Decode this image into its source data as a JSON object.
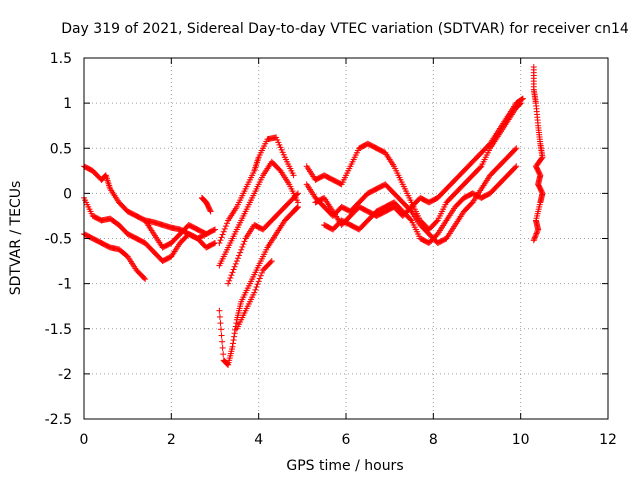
{
  "chart_data": {
    "type": "scatter",
    "title": "Day 319 of 2021, Sidereal Day-to-day VTEC variation (SDTVAR) for receiver cn14",
    "xlabel": "GPS time / hours",
    "ylabel": "SDTVAR / TECUs",
    "xlim": [
      0,
      12
    ],
    "ylim": [
      -2.5,
      1.5
    ],
    "xticks": [
      0,
      2,
      4,
      6,
      8,
      10,
      12
    ],
    "xtick_labels": [
      "0",
      "2",
      "4",
      "6",
      "8",
      "10",
      "12"
    ],
    "yticks": [
      -2.5,
      -2,
      -1.5,
      -1,
      -0.5,
      0,
      0.5,
      1,
      1.5
    ],
    "ytick_labels": [
      "-2.5",
      "-2",
      "-1.5",
      "-1",
      "-0.5",
      "0",
      "0.5",
      "1",
      "1.5"
    ],
    "grid": true,
    "marker": "+",
    "color": "#ff0000",
    "series": [
      {
        "name": "track-1",
        "points": [
          [
            0.0,
            0.3
          ],
          [
            0.2,
            0.25
          ],
          [
            0.4,
            0.15
          ],
          [
            0.5,
            0.2
          ],
          [
            0.6,
            0.05
          ],
          [
            0.8,
            -0.1
          ],
          [
            1.0,
            -0.2
          ],
          [
            1.2,
            -0.25
          ],
          [
            1.4,
            -0.3
          ],
          [
            1.6,
            -0.32
          ],
          [
            1.8,
            -0.35
          ],
          [
            2.0,
            -0.38
          ],
          [
            2.2,
            -0.4
          ],
          [
            2.4,
            -0.45
          ],
          [
            2.6,
            -0.5
          ],
          [
            2.8,
            -0.45
          ],
          [
            3.0,
            -0.4
          ]
        ]
      },
      {
        "name": "track-2",
        "points": [
          [
            0.0,
            -0.05
          ],
          [
            0.2,
            -0.25
          ],
          [
            0.4,
            -0.3
          ],
          [
            0.6,
            -0.28
          ],
          [
            0.8,
            -0.35
          ],
          [
            1.0,
            -0.45
          ],
          [
            1.2,
            -0.5
          ],
          [
            1.4,
            -0.55
          ],
          [
            1.6,
            -0.65
          ],
          [
            1.8,
            -0.75
          ],
          [
            2.0,
            -0.7
          ],
          [
            2.2,
            -0.55
          ],
          [
            2.4,
            -0.45
          ],
          [
            2.6,
            -0.5
          ],
          [
            2.8,
            -0.6
          ],
          [
            3.0,
            -0.55
          ]
        ]
      },
      {
        "name": "track-3",
        "points": [
          [
            0.0,
            -0.45
          ],
          [
            0.2,
            -0.5
          ],
          [
            0.4,
            -0.55
          ],
          [
            0.6,
            -0.6
          ],
          [
            0.8,
            -0.62
          ],
          [
            1.0,
            -0.7
          ],
          [
            1.2,
            -0.85
          ],
          [
            1.4,
            -0.95
          ]
        ]
      },
      {
        "name": "track-4",
        "points": [
          [
            1.4,
            -0.3
          ],
          [
            1.6,
            -0.45
          ],
          [
            1.8,
            -0.6
          ],
          [
            2.0,
            -0.55
          ],
          [
            2.2,
            -0.45
          ],
          [
            2.4,
            -0.35
          ],
          [
            2.6,
            -0.4
          ],
          [
            2.8,
            -0.45
          ]
        ]
      },
      {
        "name": "track-5",
        "points": [
          [
            2.7,
            -0.05
          ],
          [
            2.8,
            -0.1
          ],
          [
            2.9,
            -0.2
          ]
        ]
      },
      {
        "name": "track-6",
        "points": [
          [
            3.1,
            -1.3
          ],
          [
            3.2,
            -1.85
          ],
          [
            3.3,
            -1.9
          ],
          [
            3.4,
            -1.7
          ],
          [
            3.5,
            -1.4
          ],
          [
            3.6,
            -1.2
          ],
          [
            3.8,
            -1.0
          ],
          [
            4.0,
            -0.8
          ],
          [
            4.2,
            -0.6
          ],
          [
            4.4,
            -0.45
          ],
          [
            4.6,
            -0.3
          ],
          [
            4.8,
            -0.2
          ],
          [
            4.9,
            -0.15
          ]
        ]
      },
      {
        "name": "track-7",
        "points": [
          [
            3.1,
            -0.55
          ],
          [
            3.3,
            -0.3
          ],
          [
            3.5,
            -0.15
          ],
          [
            3.7,
            0.05
          ],
          [
            3.9,
            0.25
          ],
          [
            4.0,
            0.4
          ],
          [
            4.2,
            0.6
          ],
          [
            4.4,
            0.62
          ],
          [
            4.6,
            0.4
          ],
          [
            4.8,
            0.2
          ]
        ]
      },
      {
        "name": "track-8",
        "points": [
          [
            3.1,
            -0.8
          ],
          [
            3.3,
            -0.6
          ],
          [
            3.5,
            -0.4
          ],
          [
            3.7,
            -0.2
          ],
          [
            3.9,
            0.0
          ],
          [
            4.1,
            0.2
          ],
          [
            4.3,
            0.35
          ],
          [
            4.5,
            0.25
          ],
          [
            4.7,
            0.1
          ],
          [
            4.9,
            -0.1
          ]
        ]
      },
      {
        "name": "track-9",
        "points": [
          [
            3.3,
            -1.0
          ],
          [
            3.5,
            -0.75
          ],
          [
            3.7,
            -0.5
          ],
          [
            3.9,
            -0.35
          ],
          [
            4.1,
            -0.4
          ],
          [
            4.3,
            -0.3
          ],
          [
            4.5,
            -0.2
          ],
          [
            4.7,
            -0.1
          ],
          [
            4.9,
            0.0
          ]
        ]
      },
      {
        "name": "track-10",
        "points": [
          [
            3.5,
            -1.5
          ],
          [
            3.7,
            -1.3
          ],
          [
            3.9,
            -1.1
          ],
          [
            4.1,
            -0.85
          ],
          [
            4.3,
            -0.75
          ]
        ]
      },
      {
        "name": "track-11",
        "points": [
          [
            5.1,
            0.3
          ],
          [
            5.3,
            0.15
          ],
          [
            5.5,
            0.2
          ],
          [
            5.7,
            0.15
          ],
          [
            5.9,
            0.1
          ],
          [
            6.1,
            0.3
          ],
          [
            6.3,
            0.5
          ],
          [
            6.5,
            0.55
          ],
          [
            6.7,
            0.5
          ],
          [
            6.9,
            0.45
          ],
          [
            7.1,
            0.3
          ],
          [
            7.3,
            0.1
          ],
          [
            7.5,
            -0.1
          ],
          [
            7.7,
            -0.3
          ],
          [
            7.9,
            -0.4
          ],
          [
            8.1,
            -0.3
          ],
          [
            8.3,
            -0.1
          ],
          [
            8.5,
            0.0
          ],
          [
            8.7,
            0.1
          ],
          [
            8.9,
            0.2
          ],
          [
            9.1,
            0.3
          ],
          [
            9.3,
            0.5
          ],
          [
            9.5,
            0.65
          ],
          [
            9.7,
            0.8
          ],
          [
            9.9,
            0.95
          ],
          [
            10.0,
            1.0
          ]
        ]
      },
      {
        "name": "track-12",
        "points": [
          [
            5.1,
            0.1
          ],
          [
            5.3,
            -0.05
          ],
          [
            5.5,
            -0.15
          ],
          [
            5.7,
            -0.25
          ],
          [
            5.9,
            -0.15
          ],
          [
            6.1,
            -0.2
          ],
          [
            6.3,
            -0.1
          ],
          [
            6.5,
            0.0
          ],
          [
            6.7,
            0.05
          ],
          [
            6.9,
            0.1
          ],
          [
            7.1,
            0.0
          ],
          [
            7.3,
            -0.1
          ],
          [
            7.5,
            -0.2
          ],
          [
            7.7,
            -0.35
          ],
          [
            7.9,
            -0.45
          ],
          [
            8.1,
            -0.55
          ],
          [
            8.3,
            -0.5
          ],
          [
            8.5,
            -0.35
          ],
          [
            8.7,
            -0.2
          ],
          [
            8.9,
            -0.1
          ],
          [
            9.1,
            0.05
          ],
          [
            9.3,
            0.2
          ],
          [
            9.5,
            0.3
          ],
          [
            9.7,
            0.4
          ],
          [
            9.9,
            0.5
          ]
        ]
      },
      {
        "name": "track-13",
        "points": [
          [
            5.5,
            -0.35
          ],
          [
            5.7,
            -0.4
          ],
          [
            5.9,
            -0.3
          ],
          [
            6.1,
            -0.35
          ],
          [
            6.3,
            -0.4
          ],
          [
            6.5,
            -0.3
          ],
          [
            6.7,
            -0.2
          ],
          [
            6.9,
            -0.15
          ],
          [
            7.1,
            -0.1
          ],
          [
            7.3,
            -0.2
          ],
          [
            7.5,
            -0.3
          ],
          [
            7.7,
            -0.5
          ],
          [
            7.9,
            -0.55
          ],
          [
            8.1,
            -0.45
          ],
          [
            8.3,
            -0.3
          ],
          [
            8.5,
            -0.15
          ],
          [
            8.7,
            -0.05
          ],
          [
            8.9,
            0.0
          ],
          [
            9.1,
            -0.05
          ],
          [
            9.3,
            0.0
          ],
          [
            9.5,
            0.1
          ],
          [
            9.7,
            0.2
          ],
          [
            9.9,
            0.3
          ]
        ]
      },
      {
        "name": "track-14",
        "points": [
          [
            5.3,
            -0.1
          ],
          [
            5.5,
            -0.05
          ],
          [
            5.7,
            -0.2
          ],
          [
            5.9,
            -0.35
          ],
          [
            6.1,
            -0.25
          ],
          [
            6.3,
            -0.15
          ],
          [
            6.5,
            -0.2
          ],
          [
            6.7,
            -0.25
          ],
          [
            6.9,
            -0.2
          ],
          [
            7.1,
            -0.15
          ],
          [
            7.3,
            -0.25
          ],
          [
            7.5,
            -0.15
          ],
          [
            7.7,
            -0.05
          ],
          [
            7.9,
            -0.1
          ],
          [
            8.1,
            -0.05
          ],
          [
            8.3,
            0.05
          ],
          [
            8.5,
            0.15
          ],
          [
            8.7,
            0.25
          ],
          [
            8.9,
            0.35
          ],
          [
            9.1,
            0.45
          ],
          [
            9.3,
            0.55
          ],
          [
            9.5,
            0.7
          ],
          [
            9.7,
            0.85
          ],
          [
            9.9,
            1.0
          ],
          [
            10.05,
            1.05
          ]
        ]
      },
      {
        "name": "track-15",
        "points": [
          [
            10.3,
            1.4
          ],
          [
            10.3,
            1.15
          ],
          [
            10.35,
            1.0
          ],
          [
            10.4,
            0.75
          ],
          [
            10.45,
            0.55
          ],
          [
            10.5,
            0.4
          ],
          [
            10.35,
            0.3
          ],
          [
            10.45,
            0.2
          ],
          [
            10.4,
            0.1
          ],
          [
            10.5,
            0.0
          ],
          [
            10.45,
            -0.1
          ],
          [
            10.35,
            -0.3
          ],
          [
            10.4,
            -0.4
          ],
          [
            10.3,
            -0.52
          ]
        ]
      }
    ]
  }
}
